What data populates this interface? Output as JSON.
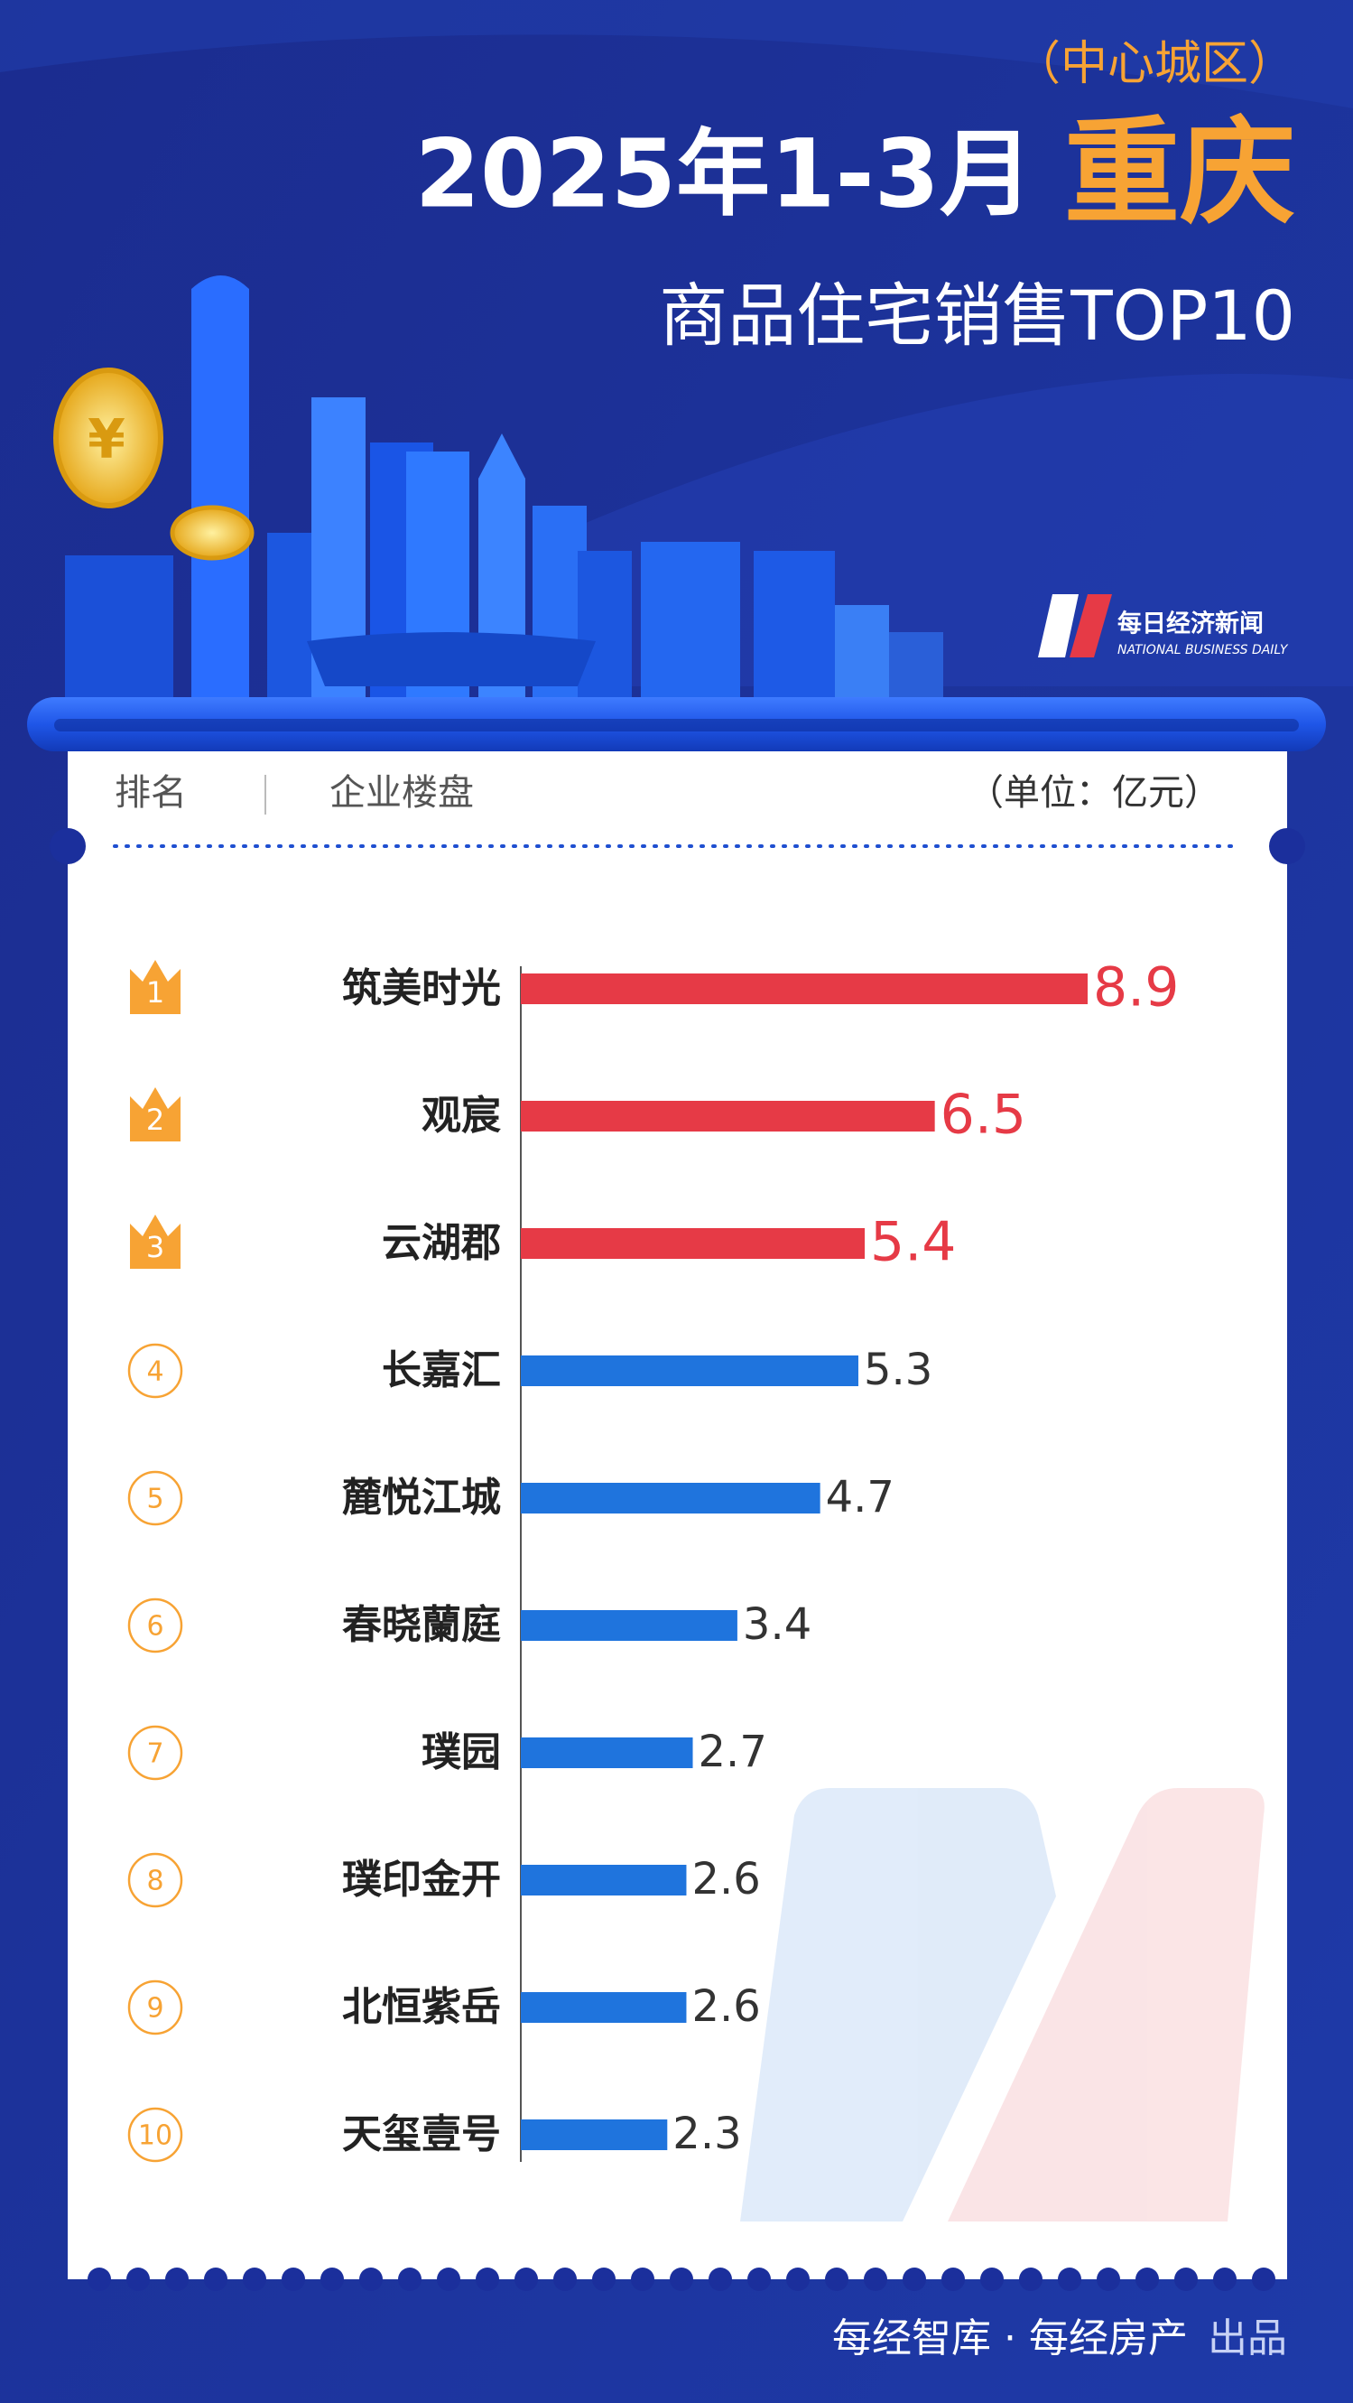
{
  "chart_data": {
    "type": "bar",
    "subtitle_top": "（中心城区）",
    "title": "2025年1-3月",
    "title_city": "重庆",
    "subtitle": "商品住宅销售TOP10",
    "logo": {
      "name": "每日经济新闻",
      "english": "NATIONAL BUSINESS DAILY"
    },
    "header": {
      "rank": "排名",
      "name": "企业楼盘",
      "unit": "（单位：亿元）"
    },
    "ranks": [
      1,
      2,
      3,
      4,
      5,
      6,
      7,
      8,
      9,
      10
    ],
    "categories": [
      "筑美时光",
      "观宸",
      "云湖郡",
      "长嘉汇",
      "麓悦江城",
      "春晓蘭庭",
      "璞园",
      "璞印金开",
      "北恒紫岳",
      "天玺壹号"
    ],
    "values": [
      8.9,
      6.5,
      5.4,
      5.3,
      4.7,
      3.4,
      2.7,
      2.6,
      2.6,
      2.3
    ],
    "colors": [
      "#e63a46",
      "#e63a46",
      "#e63a46",
      "#1f74dd",
      "#1f74dd",
      "#1f74dd",
      "#1f74dd",
      "#1f74dd",
      "#1f74dd",
      "#1f74dd"
    ],
    "footer": {
      "source": "每经智库 · 每经房产",
      "suffix": "出品"
    }
  }
}
